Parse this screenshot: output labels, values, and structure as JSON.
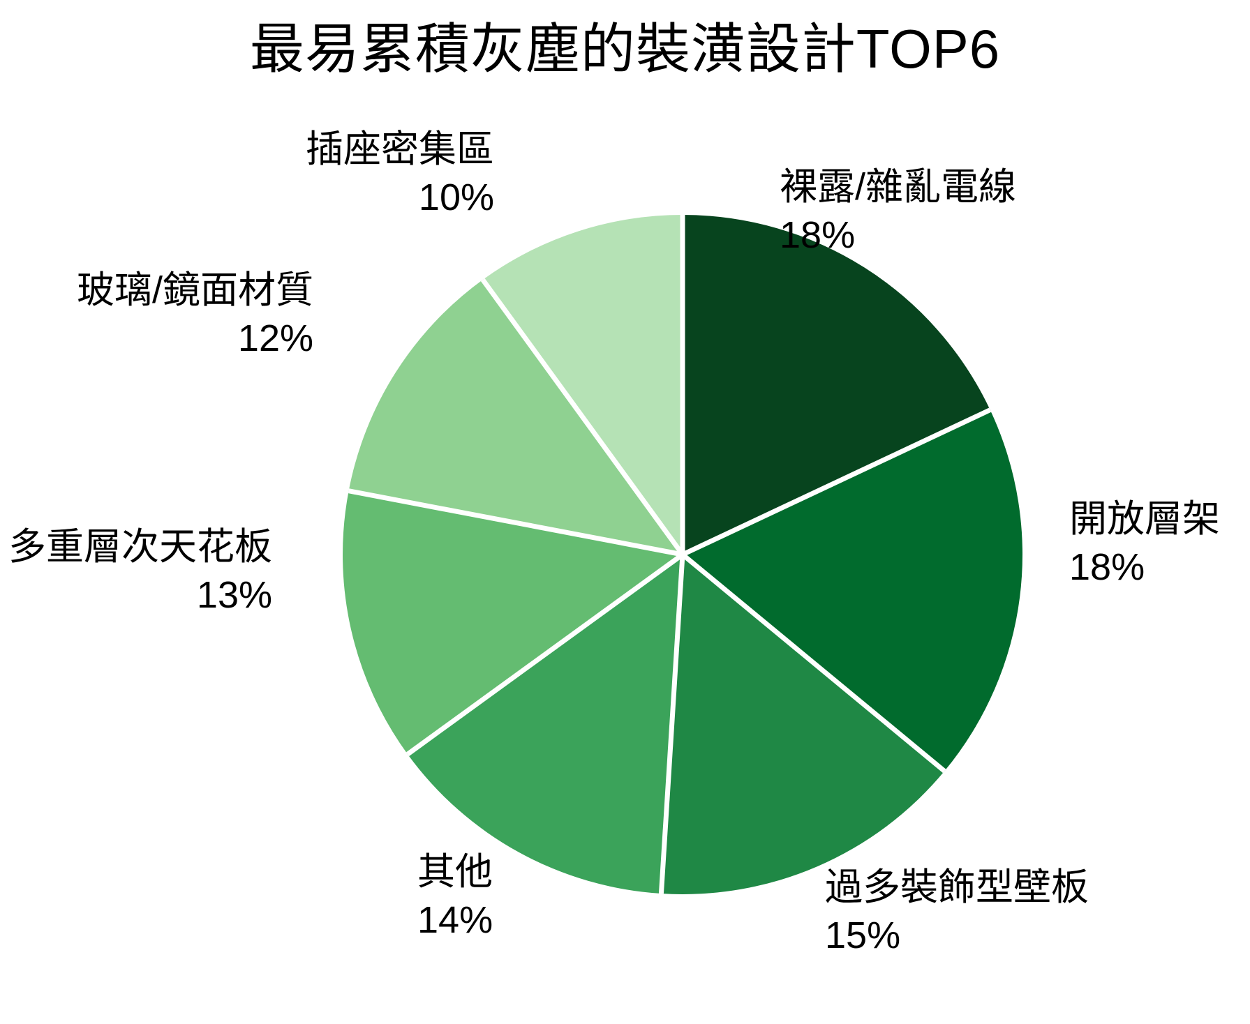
{
  "chart_data": {
    "type": "pie",
    "title": "最易累積灰塵的裝潢設計TOP6",
    "labels_position": "outside",
    "legend": "none",
    "background": "#ffffff",
    "separator_color": "#ffffff",
    "label_color": "#000000",
    "start_angle_deg": 0,
    "direction": "clockwise",
    "slices": [
      {
        "label": "裸露/雜亂電線",
        "value": 18,
        "pct_label": "18%",
        "color": "#07441e"
      },
      {
        "label": "開放層架",
        "value": 18,
        "pct_label": "18%",
        "color": "#016b2d"
      },
      {
        "label": "過多裝飾型壁板",
        "value": 15,
        "pct_label": "15%",
        "color": "#1f8845"
      },
      {
        "label": "其他",
        "value": 14,
        "pct_label": "14%",
        "color": "#3ba35a"
      },
      {
        "label": "多重層次天花板",
        "value": 13,
        "pct_label": "13%",
        "color": "#64bc71"
      },
      {
        "label": "玻璃/鏡面材質",
        "value": 12,
        "pct_label": "12%",
        "color": "#8fd191"
      },
      {
        "label": "插座密集區",
        "value": 10,
        "pct_label": "10%",
        "color": "#b5e2b5"
      }
    ]
  }
}
